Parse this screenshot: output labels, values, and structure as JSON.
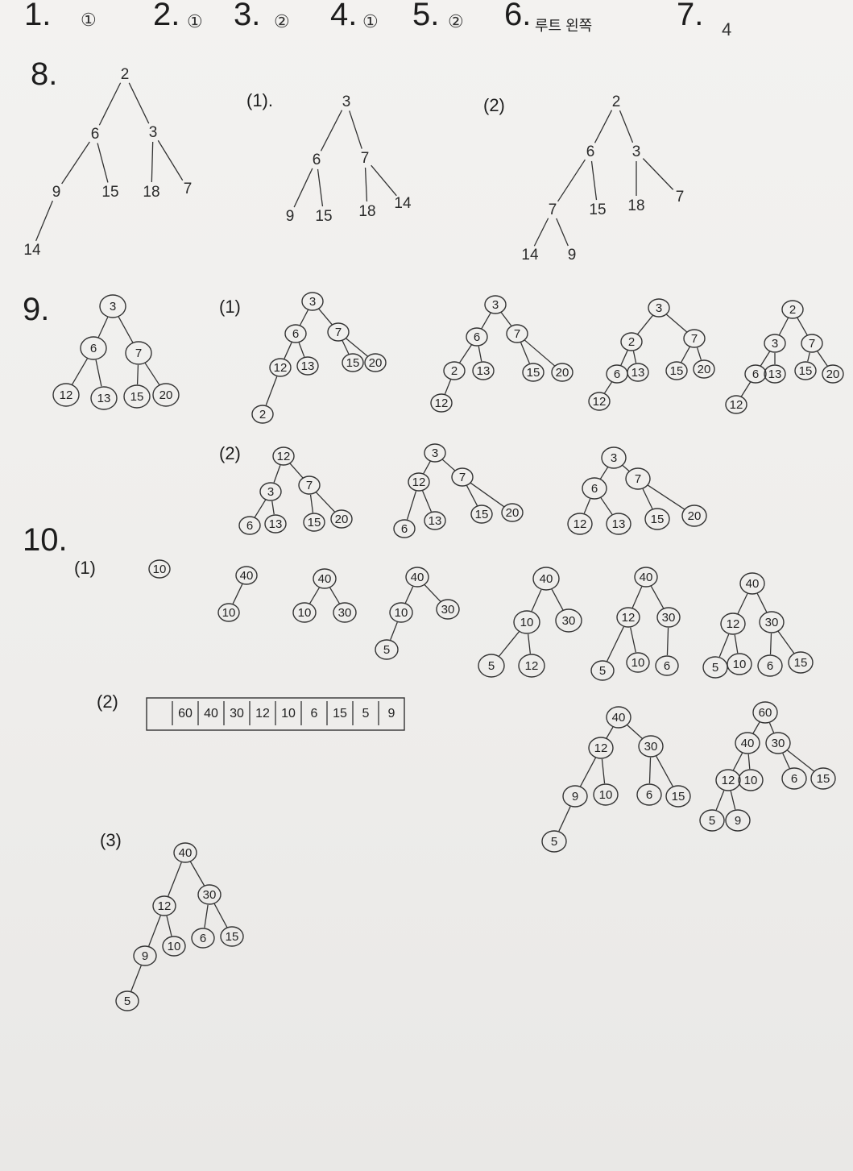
{
  "answers": [
    {
      "num": "1.",
      "ans": "①"
    },
    {
      "num": "2.",
      "ans": "①"
    },
    {
      "num": "3.",
      "ans": "②"
    },
    {
      "num": "4.",
      "ans": "①"
    },
    {
      "num": "5.",
      "ans": "②"
    },
    {
      "num": "6.",
      "ans": "루트 왼쪽"
    },
    {
      "num": "7.",
      "ans": "4"
    }
  ],
  "q8": {
    "num": "8.",
    "sub1": "(1).",
    "sub2": "(2)",
    "trees": {
      "t0": [
        "2",
        "6",
        "3",
        "9",
        "15",
        "18",
        "7",
        "14"
      ],
      "t1": [
        "3",
        "6",
        "7",
        "9",
        "15",
        "18",
        "14"
      ],
      "t2": [
        "2",
        "6",
        "3",
        "7",
        "15",
        "18",
        "7",
        "14",
        "9"
      ]
    }
  },
  "q9": {
    "num": "9.",
    "sub1": "(1)",
    "sub2": "(2)",
    "base": [
      "3",
      "6",
      "7",
      "12",
      "13",
      "15",
      "20"
    ],
    "s1a": [
      "3",
      "6",
      "7",
      "12",
      "13",
      "15",
      "20",
      "2"
    ],
    "s1b": [
      "3",
      "6",
      "7",
      "2",
      "13",
      "15",
      "20",
      "12"
    ],
    "s1c": [
      "3",
      "2",
      "7",
      "6",
      "13",
      "15",
      "20",
      "12"
    ],
    "s1d": [
      "2",
      "3",
      "7",
      "6",
      "13",
      "15",
      "20",
      "12"
    ],
    "s2a": [
      "12",
      "3",
      "7",
      "6",
      "13",
      "15",
      "20"
    ],
    "s2b": [
      "3",
      "12",
      "7",
      "6",
      "13",
      "15",
      "20"
    ],
    "s2c": [
      "3",
      "6",
      "7",
      "12",
      "13",
      "15",
      "20"
    ]
  },
  "q10": {
    "num": "10.",
    "sub1": "(1)",
    "sub2": "(2)",
    "sub3": "(3)",
    "steps": {
      "a": [
        "10"
      ],
      "b": [
        "40",
        "10"
      ],
      "c": [
        "40",
        "10",
        "30"
      ],
      "d": [
        "40",
        "10",
        "30",
        "5"
      ],
      "e": [
        "40",
        "10",
        "30",
        "5",
        "12"
      ],
      "f": [
        "40",
        "12",
        "30",
        "5",
        "10",
        "6"
      ],
      "g": [
        "40",
        "12",
        "30",
        "5",
        "10",
        "6",
        "15"
      ]
    },
    "array": [
      "",
      "60",
      "40",
      "30",
      "12",
      "10",
      "6",
      "15",
      "5",
      "9"
    ],
    "heapA": [
      "40",
      "12",
      "30",
      "9",
      "10",
      "6",
      "15",
      "5"
    ],
    "heapB": [
      "60",
      "40",
      "30",
      "12",
      "10",
      "6",
      "15",
      "5",
      "9"
    ],
    "heapC": [
      "40",
      "12",
      "30",
      "9",
      "10",
      "6",
      "15",
      "5"
    ]
  }
}
